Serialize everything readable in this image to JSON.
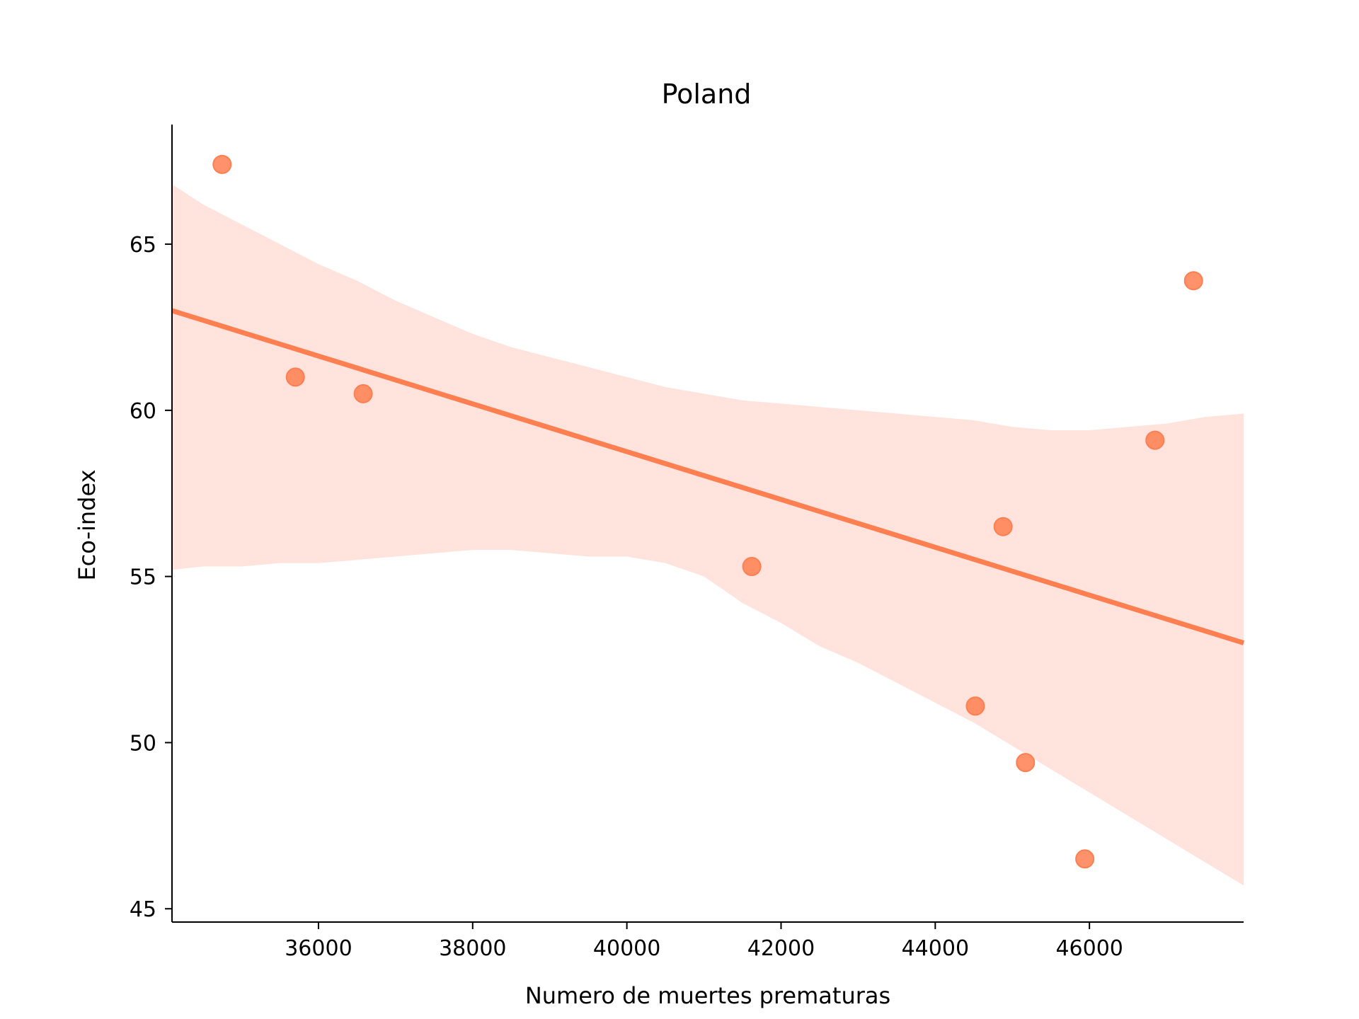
{
  "chart_data": {
    "type": "scatter",
    "title": "Poland",
    "xlabel": "Numero de muertes prematuras",
    "ylabel": "Eco-index",
    "xlim": [
      34100,
      48000
    ],
    "ylim": [
      44.6,
      68.6
    ],
    "x_ticks": [
      36000,
      38000,
      40000,
      42000,
      44000,
      46000
    ],
    "y_ticks": [
      45,
      50,
      55,
      60,
      65
    ],
    "grid": false,
    "points": [
      {
        "x": 34750,
        "y": 67.4
      },
      {
        "x": 35700,
        "y": 61.0
      },
      {
        "x": 36580,
        "y": 60.5
      },
      {
        "x": 41620,
        "y": 55.3
      },
      {
        "x": 44520,
        "y": 51.1
      },
      {
        "x": 44880,
        "y": 56.5
      },
      {
        "x": 45170,
        "y": 49.4
      },
      {
        "x": 45940,
        "y": 46.5
      },
      {
        "x": 46850,
        "y": 59.1
      },
      {
        "x": 47350,
        "y": 63.9
      }
    ],
    "regression_line": {
      "x": [
        34100,
        48000
      ],
      "y": [
        63.0,
        53.0
      ]
    },
    "confidence_band": {
      "x": [
        34100,
        34500,
        35000,
        35500,
        36000,
        36500,
        37000,
        37500,
        38000,
        38500,
        39000,
        39500,
        40000,
        40500,
        41000,
        41500,
        42000,
        42500,
        43000,
        43500,
        44000,
        44500,
        45000,
        45500,
        46000,
        46500,
        47000,
        47500,
        48000
      ],
      "upper": [
        66.8,
        66.2,
        65.6,
        65.0,
        64.4,
        63.9,
        63.3,
        62.8,
        62.3,
        61.9,
        61.6,
        61.3,
        61.0,
        60.7,
        60.5,
        60.3,
        60.2,
        60.1,
        60.0,
        59.9,
        59.8,
        59.7,
        59.5,
        59.4,
        59.4,
        59.5,
        59.6,
        59.8,
        59.9
      ],
      "lower": [
        55.2,
        55.3,
        55.3,
        55.4,
        55.4,
        55.5,
        55.6,
        55.7,
        55.8,
        55.8,
        55.7,
        55.6,
        55.6,
        55.4,
        55.0,
        54.2,
        53.6,
        52.9,
        52.4,
        51.8,
        51.2,
        50.6,
        49.9,
        49.2,
        48.5,
        47.8,
        47.1,
        46.4,
        45.7
      ]
    },
    "colors": {
      "point": "#ff7f50",
      "line": "#ff7f50",
      "band": "#ffe3dc",
      "axis": "#000000"
    }
  }
}
